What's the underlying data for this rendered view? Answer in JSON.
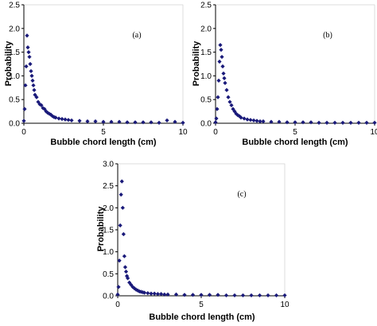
{
  "chart_data": [
    {
      "type": "scatter",
      "panel_label": "(a)",
      "xlabel": "Bubble chord length (cm)",
      "ylabel": "Probability",
      "xlim": [
        0,
        10
      ],
      "ylim": [
        0,
        2.5
      ],
      "x_ticks": [
        0,
        5,
        10
      ],
      "y_ticks": [
        0.0,
        0.5,
        1.0,
        1.5,
        2.0,
        2.5
      ],
      "x_tick_labels": [
        "0",
        "5",
        "10"
      ],
      "y_tick_labels": [
        "0.0",
        "0.5",
        "1.0",
        "1.5",
        "2.0",
        "2.5"
      ],
      "grid": false,
      "marker": "diamond",
      "marker_color": "#1a1a7a",
      "series": [
        {
          "x": [
            0.0,
            0.05,
            0.1,
            0.15,
            0.2,
            0.25,
            0.3,
            0.35,
            0.4,
            0.45,
            0.5,
            0.55,
            0.6,
            0.65,
            0.7,
            0.8,
            0.9,
            1.0,
            1.1,
            1.2,
            1.3,
            1.4,
            1.5,
            1.6,
            1.7,
            1.8,
            1.9,
            2.0,
            2.2,
            2.4,
            2.6,
            2.8,
            3.0,
            3.5,
            4.0,
            4.5,
            5.0,
            5.5,
            6.0,
            6.5,
            7.0,
            7.5,
            8.0,
            8.5,
            9.0,
            9.5,
            10.0
          ],
          "y": [
            0.05,
            0.3,
            0.8,
            1.2,
            1.85,
            1.6,
            1.5,
            1.4,
            1.25,
            1.1,
            1.0,
            0.9,
            0.8,
            0.7,
            0.6,
            0.55,
            0.45,
            0.4,
            0.38,
            0.32,
            0.3,
            0.25,
            0.22,
            0.2,
            0.18,
            0.15,
            0.13,
            0.12,
            0.1,
            0.09,
            0.08,
            0.07,
            0.06,
            0.05,
            0.04,
            0.04,
            0.03,
            0.03,
            0.03,
            0.02,
            0.02,
            0.02,
            0.02,
            0.01,
            0.06,
            0.03,
            0.01
          ]
        }
      ]
    },
    {
      "type": "scatter",
      "panel_label": "(b)",
      "xlabel": "Bubble chord length (cm)",
      "ylabel": "Probability",
      "xlim": [
        0,
        10
      ],
      "ylim": [
        0,
        2.5
      ],
      "x_ticks": [
        0,
        5,
        10
      ],
      "y_ticks": [
        0.0,
        0.5,
        1.0,
        1.5,
        2.0,
        2.5
      ],
      "x_tick_labels": [
        "0",
        "5",
        "10"
      ],
      "y_tick_labels": [
        "0.0",
        "0.5",
        "1.0",
        "1.5",
        "2.0",
        "2.5"
      ],
      "grid": false,
      "marker": "diamond",
      "marker_color": "#1a1a7a",
      "series": [
        {
          "x": [
            0.0,
            0.05,
            0.1,
            0.15,
            0.2,
            0.25,
            0.3,
            0.35,
            0.4,
            0.45,
            0.5,
            0.55,
            0.6,
            0.7,
            0.8,
            0.9,
            1.0,
            1.1,
            1.2,
            1.3,
            1.4,
            1.5,
            1.6,
            1.8,
            2.0,
            2.2,
            2.4,
            2.6,
            2.8,
            3.0,
            3.5,
            4.0,
            4.5,
            5.0,
            5.5,
            6.0,
            6.5,
            7.0,
            7.5,
            8.0,
            8.5,
            9.0,
            9.5,
            10.0
          ],
          "y": [
            0.02,
            0.1,
            0.3,
            0.55,
            0.9,
            1.3,
            1.65,
            1.55,
            1.4,
            1.2,
            1.05,
            0.95,
            0.85,
            0.7,
            0.55,
            0.45,
            0.38,
            0.3,
            0.25,
            0.2,
            0.17,
            0.15,
            0.12,
            0.1,
            0.08,
            0.07,
            0.06,
            0.05,
            0.04,
            0.04,
            0.03,
            0.03,
            0.02,
            0.02,
            0.02,
            0.02,
            0.01,
            0.01,
            0.01,
            0.01,
            0.01,
            0.01,
            0.01,
            0.01
          ]
        }
      ]
    },
    {
      "type": "scatter",
      "panel_label": "(c)",
      "xlabel": "Bubble chord length (cm)",
      "ylabel": "Probability",
      "xlim": [
        0,
        10
      ],
      "ylim": [
        0,
        3.0
      ],
      "x_ticks": [
        0,
        5,
        10
      ],
      "y_ticks": [
        0.0,
        0.5,
        1.0,
        1.5,
        2.0,
        2.5,
        3.0
      ],
      "x_tick_labels": [
        "0",
        "5",
        "10"
      ],
      "y_tick_labels": [
        "0.0",
        "0.5",
        "1.0",
        "1.5",
        "2.0",
        "2.5",
        "3.0"
      ],
      "grid": false,
      "marker": "diamond",
      "marker_color": "#1a1a7a",
      "series": [
        {
          "x": [
            0.0,
            0.05,
            0.1,
            0.15,
            0.2,
            0.25,
            0.3,
            0.35,
            0.4,
            0.45,
            0.5,
            0.55,
            0.6,
            0.7,
            0.8,
            0.9,
            1.0,
            1.1,
            1.2,
            1.3,
            1.4,
            1.5,
            1.6,
            1.8,
            2.0,
            2.2,
            2.4,
            2.6,
            2.8,
            3.0,
            3.5,
            4.0,
            4.5,
            5.0,
            5.5,
            6.0,
            6.5,
            7.0,
            7.5,
            8.0,
            8.5,
            9.0,
            9.5,
            10.0
          ],
          "y": [
            0.03,
            0.2,
            0.8,
            1.6,
            2.3,
            2.6,
            2.0,
            1.4,
            0.9,
            0.65,
            0.55,
            0.45,
            0.4,
            0.3,
            0.25,
            0.2,
            0.17,
            0.14,
            0.12,
            0.1,
            0.09,
            0.08,
            0.07,
            0.06,
            0.05,
            0.05,
            0.04,
            0.04,
            0.03,
            0.03,
            0.03,
            0.02,
            0.02,
            0.02,
            0.02,
            0.02,
            0.01,
            0.01,
            0.01,
            0.01,
            0.01,
            0.01,
            0.01,
            0.01
          ]
        }
      ]
    }
  ]
}
